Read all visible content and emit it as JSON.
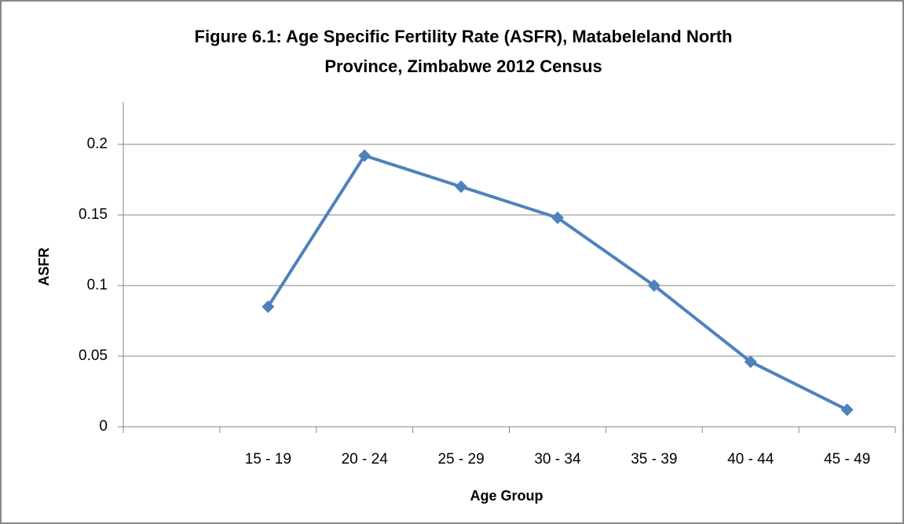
{
  "chart_data": {
    "type": "line",
    "title": [
      "Figure 6.1: Age Specific Fertility Rate (ASFR), Matabeleland North",
      "Province, Zimbabwe 2012 Census"
    ],
    "x_label": "Age Group",
    "y_label": "ASFR",
    "categories": [
      null,
      "15 - 19",
      "20 - 24",
      "25 - 29",
      "30 - 34",
      "35 - 39",
      "40 - 44",
      "45 - 49"
    ],
    "series": [
      {
        "name": "ASFR",
        "color": "#4f81bd",
        "values": [
          null,
          0.085,
          0.192,
          0.17,
          0.148,
          0.1,
          0.046,
          0.012
        ]
      }
    ],
    "ylim": [
      0,
      0.23
    ],
    "yticks": [
      0,
      0.05,
      0.1,
      0.15,
      0.2
    ],
    "grid": true,
    "legend": false
  }
}
